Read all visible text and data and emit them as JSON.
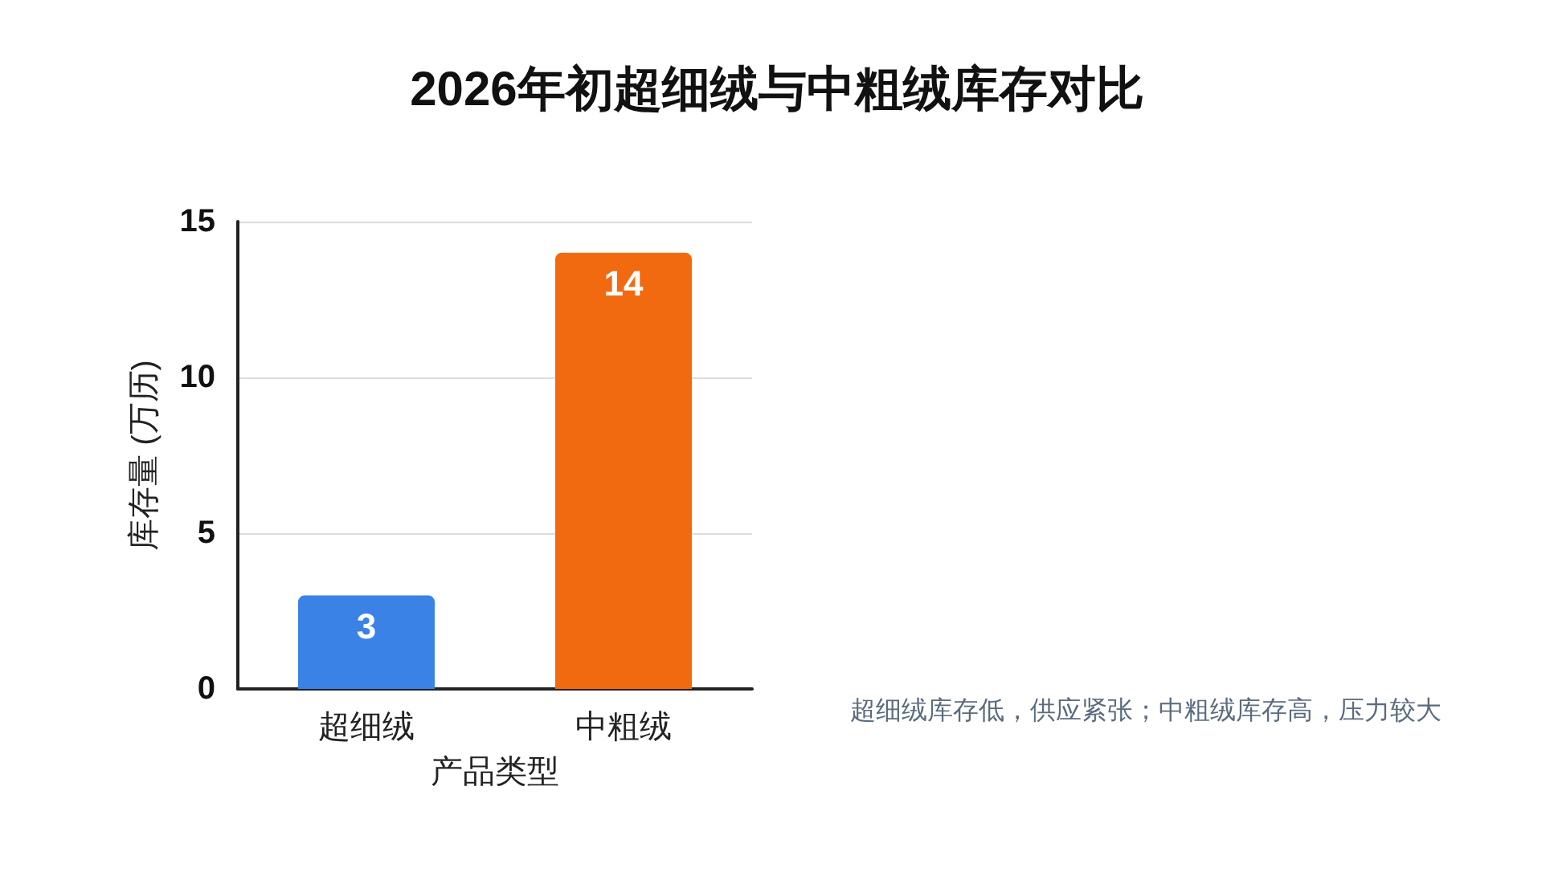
{
  "chart_data": {
    "type": "bar",
    "title": "2026年初超细绒与中粗绒库存对比",
    "xlabel": "产品类型",
    "ylabel": "库存量 (万历)",
    "categories": [
      "超细绒",
      "中粗绒"
    ],
    "values": [
      3,
      14
    ],
    "colors": [
      "#3b82e6",
      "#f26a10"
    ],
    "ylim": [
      0,
      15
    ],
    "yticks": [
      0,
      5,
      10,
      15
    ],
    "grid": "y",
    "data_labels": true,
    "annotations": [
      "超细绒库存低，供应紧张；中粗绒库存高，压力较大"
    ]
  }
}
